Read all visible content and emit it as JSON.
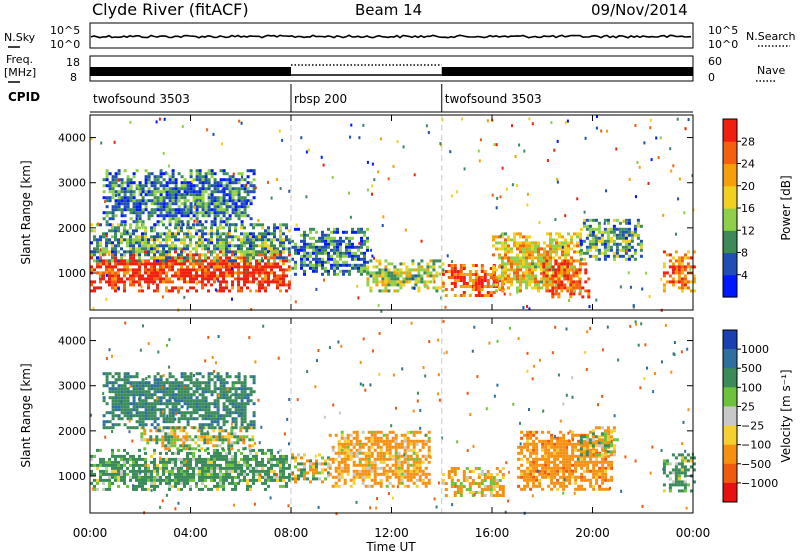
{
  "header": {
    "station": "Clyde River (fitACF)",
    "beam": "Beam 14",
    "date": "09/Nov/2014"
  },
  "left_labels": {
    "nsky": "N.Sky",
    "freq_line1": "Freq.",
    "freq_line2": "[MHz]",
    "cpid": "CPID"
  },
  "right_labels": {
    "nsearch": "N.Search",
    "nave": "Nave"
  },
  "nsky_ticks": [
    "10^5",
    "10^0"
  ],
  "nsearch_ticks": [
    "10^5",
    "10^0"
  ],
  "freq_ticks": [
    "18",
    "8"
  ],
  "nave_ticks": [
    "60",
    "0"
  ],
  "cpid_segments": [
    {
      "label": "twofsound 3503",
      "start_hour": 0,
      "end_hour": 8
    },
    {
      "label": "rbsp 200",
      "start_hour": 8,
      "end_hour": 14
    },
    {
      "label": "twofsound 3503",
      "start_hour": 14,
      "end_hour": 24
    }
  ],
  "x_axis": {
    "title": "Time UT",
    "ticks": [
      "00:00",
      "04:00",
      "08:00",
      "12:00",
      "16:00",
      "20:00",
      "00:00"
    ]
  },
  "y_axis": {
    "title": "Slant Range [km]",
    "ticks": [
      "1000",
      "2000",
      "3000",
      "4000"
    ]
  },
  "power_colorbar": {
    "title": "Power [dB]",
    "ticks": [
      "4",
      "8",
      "12",
      "16",
      "20",
      "24",
      "28"
    ],
    "colors": [
      "#0018ff",
      "#1f4fb3",
      "#3c8a5c",
      "#8fd04a",
      "#f0d020",
      "#f5a00a",
      "#f56010",
      "#f02010"
    ]
  },
  "velocity_colorbar": {
    "title": "Velocity [m s⁻¹]",
    "ticks": [
      "1000",
      "500",
      "100",
      "25",
      "−25",
      "−100",
      "−500",
      "−1000"
    ],
    "colors": [
      "#1a3fb0",
      "#2f6fa0",
      "#3a8a5a",
      "#6cc23a",
      "#c8c8c8",
      "#f5d030",
      "#f59010",
      "#f05a10",
      "#e81010"
    ]
  },
  "chart_data": {
    "type": "heatmap",
    "title": "Clyde River (fitACF)",
    "xlabel": "Time UT",
    "ylabel": "Slant Range [km]",
    "xlim": [
      0,
      24
    ],
    "ylim": [
      180,
      4500
    ],
    "panels": [
      {
        "name": "Power",
        "quantity": "Power [dB]",
        "color_range": [
          0,
          30
        ],
        "regions": [
          {
            "t": [
              0.0,
              8.0
            ],
            "r": [
              600,
              1500
            ],
            "value": 28
          },
          {
            "t": [
              0.0,
              8.0
            ],
            "r": [
              1300,
              2100
            ],
            "value": 10
          },
          {
            "t": [
              0.5,
              6.5
            ],
            "r": [
              2100,
              3300
            ],
            "value": 8
          },
          {
            "t": [
              8.0,
              11.0
            ],
            "r": [
              1000,
              2000
            ],
            "value": 8
          },
          {
            "t": [
              11.0,
              14.0
            ],
            "r": [
              600,
              1300
            ],
            "value": 14
          },
          {
            "t": [
              14.0,
              16.5
            ],
            "r": [
              500,
              1200
            ],
            "value": 26
          },
          {
            "t": [
              16.0,
              19.5
            ],
            "r": [
              600,
              1900
            ],
            "value": 18
          },
          {
            "t": [
              18.0,
              19.8
            ],
            "r": [
              500,
              1300
            ],
            "value": 26
          },
          {
            "t": [
              19.5,
              22.0
            ],
            "r": [
              1300,
              2200
            ],
            "value": 10
          },
          {
            "t": [
              22.8,
              24.0
            ],
            "r": [
              600,
              1500
            ],
            "value": 22
          }
        ]
      },
      {
        "name": "Velocity",
        "quantity": "Velocity [m s⁻¹]",
        "color_range": [
          -1000,
          1000
        ],
        "regions": [
          {
            "t": [
              0.0,
              8.0
            ],
            "r": [
              700,
              1600
            ],
            "value": 200
          },
          {
            "t": [
              2.0,
              6.5
            ],
            "r": [
              1600,
              2100
            ],
            "value": 10
          },
          {
            "t": [
              0.5,
              6.5
            ],
            "r": [
              2100,
              3300
            ],
            "value": 400
          },
          {
            "t": [
              8.0,
              9.5
            ],
            "r": [
              900,
              1500
            ],
            "value": -50
          },
          {
            "t": [
              9.5,
              13.5
            ],
            "r": [
              800,
              2000
            ],
            "value": -200
          },
          {
            "t": [
              14.0,
              16.5
            ],
            "r": [
              600,
              1200
            ],
            "value": -150
          },
          {
            "t": [
              17.0,
              20.8
            ],
            "r": [
              700,
              2000
            ],
            "value": -300
          },
          {
            "t": [
              19.5,
              21.0
            ],
            "r": [
              1500,
              2100
            ],
            "value": 10
          },
          {
            "t": [
              22.8,
              24.0
            ],
            "r": [
              700,
              1500
            ],
            "value": 200
          }
        ]
      }
    ]
  }
}
